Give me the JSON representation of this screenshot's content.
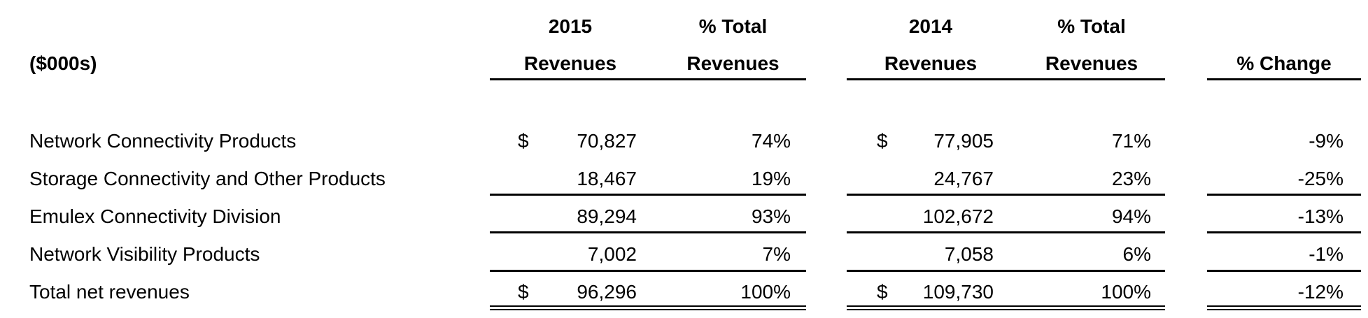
{
  "header": {
    "unit_label": "($000s)",
    "col_2015_line1": "2015",
    "col_2015_line2": "Revenues",
    "col_pct2015_line1": "% Total",
    "col_pct2015_line2": "Revenues",
    "col_2014_line1": "2014",
    "col_2014_line2": "Revenues",
    "col_pct2014_line1": "% Total",
    "col_pct2014_line2": "Revenues",
    "col_change": "% Change"
  },
  "currency_symbol": "$",
  "rows": [
    {
      "label": "Network Connectivity Products",
      "rev_2015": "70,827",
      "pct_2015": "74%",
      "rev_2014": "77,905",
      "pct_2014": "71%",
      "change": "-9%"
    },
    {
      "label": "Storage Connectivity and Other Products",
      "rev_2015": "18,467",
      "pct_2015": "19%",
      "rev_2014": "24,767",
      "pct_2014": "23%",
      "change": "-25%"
    },
    {
      "label": "Emulex Connectivity Division",
      "rev_2015": "89,294",
      "pct_2015": "93%",
      "rev_2014": "102,672",
      "pct_2014": "94%",
      "change": "-13%"
    },
    {
      "label": "Network Visibility Products",
      "rev_2015": "7,002",
      "pct_2015": "7%",
      "rev_2014": "7,058",
      "pct_2014": "6%",
      "change": "-1%"
    },
    {
      "label": "Total net revenues",
      "rev_2015": "96,296",
      "pct_2015": "100%",
      "rev_2014": "109,730",
      "pct_2014": "100%",
      "change": "-12%"
    }
  ]
}
